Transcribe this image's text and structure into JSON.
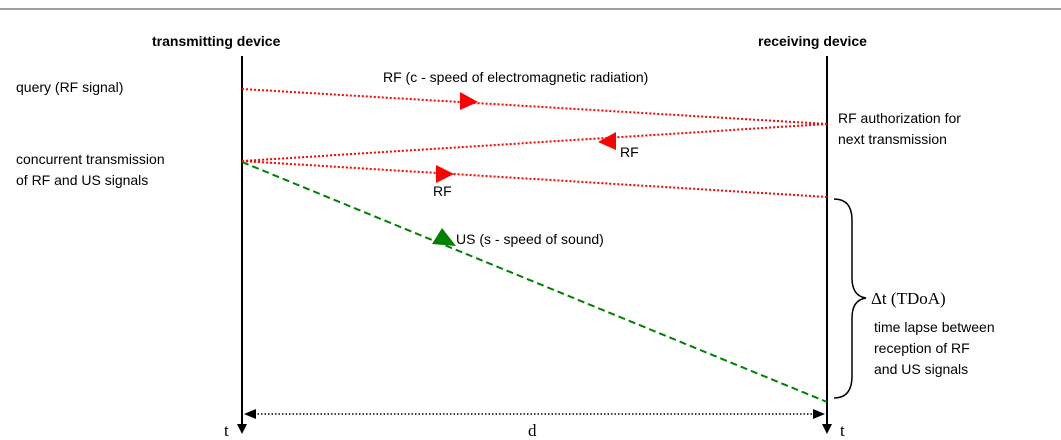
{
  "columns": {
    "transmitter": "transmitting device",
    "receiver": "receiving device"
  },
  "left_labels": {
    "query": "query (RF signal)",
    "concurrent_line1": "concurrent transmission",
    "concurrent_line2": "of RF and  US signals"
  },
  "signals": {
    "rf_query": "RF (c - speed of electromagnetic radiation)",
    "rf_return": "RF",
    "rf_concurrent": "RF",
    "us": "US (s - speed of sound)"
  },
  "right_labels": {
    "authorization_line1": "RF authorization for",
    "authorization_line2": "next transmission",
    "tdoa": "Δt  (TDoA)",
    "lapse_line1": "time lapse between",
    "lapse_line2": "reception of RF",
    "lapse_line3": "and US signals"
  },
  "axis": {
    "time_left": "t",
    "time_right": "t",
    "distance": "d"
  },
  "colors": {
    "rf": "#ff0000",
    "us": "#008000",
    "axis": "#000000",
    "rule": "#808080"
  }
}
